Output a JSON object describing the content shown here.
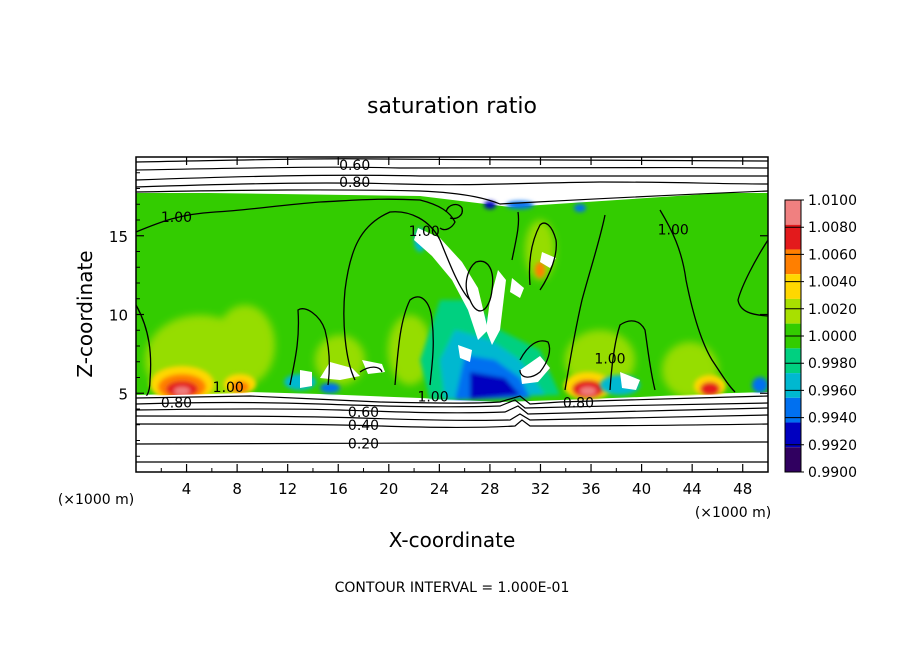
{
  "chart_data": {
    "type": "heatmap",
    "title": "saturation ratio",
    "xlabel": "X-coordinate",
    "ylabel": "Z-coordinate",
    "x_units": "(×1000 m)",
    "y_units": "(×1000 m)",
    "footer": "CONTOUR INTERVAL = 1.000E-01",
    "xlim": [
      0,
      50
    ],
    "ylim": [
      0,
      20
    ],
    "x_ticks": [
      4,
      8,
      12,
      16,
      20,
      24,
      28,
      32,
      36,
      40,
      44,
      48
    ],
    "y_ticks": [
      5,
      10,
      15
    ],
    "colorbar": {
      "ticks": [
        "1.0100",
        "1.0080",
        "1.0060",
        "1.0040",
        "1.0020",
        "1.0000",
        "0.9980",
        "0.9960",
        "0.9940",
        "0.9920",
        "0.9900"
      ],
      "colors": [
        "#f08080",
        "#e31a1c",
        "#ff7f00",
        "#ffd700",
        "#a8e000",
        "#33cc00",
        "#00d080",
        "#00b8d0",
        "#0070f0",
        "#0000c0",
        "#300060"
      ]
    },
    "contour_labels": [
      {
        "text": "0.60",
        "x": 17.3,
        "z": 19.5
      },
      {
        "text": "0.80",
        "x": 17.3,
        "z": 18.4
      },
      {
        "text": "1.00",
        "x": 3.2,
        "z": 16.2
      },
      {
        "text": "1.00",
        "x": 22.8,
        "z": 15.3
      },
      {
        "text": "1.00",
        "x": 42.5,
        "z": 15.4
      },
      {
        "text": "1.00",
        "x": 37.5,
        "z": 7.2
      },
      {
        "text": "1.00",
        "x": 7.3,
        "z": 5.4
      },
      {
        "text": "1.00",
        "x": 23.5,
        "z": 4.8
      },
      {
        "text": "0.80",
        "x": 3.2,
        "z": 4.4
      },
      {
        "text": "0.80",
        "x": 35.0,
        "z": 4.4
      },
      {
        "text": "0.60",
        "x": 18.0,
        "z": 3.8
      },
      {
        "text": "0.40",
        "x": 18.0,
        "z": 3.0
      },
      {
        "text": "0.20",
        "x": 18.0,
        "z": 1.8
      }
    ]
  }
}
